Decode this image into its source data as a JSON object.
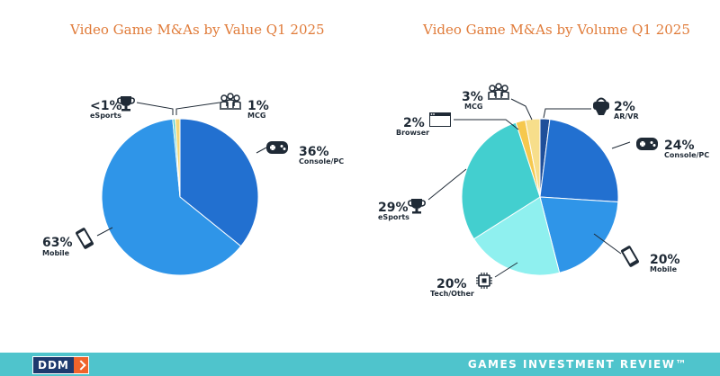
{
  "chart_data": [
    {
      "type": "pie",
      "title": "Video Game M&As by Value Q1 2025",
      "slices": [
        {
          "label": "Console/PC",
          "value": 36,
          "pct_label": "36%",
          "color": "#2270d0",
          "icon": "gamepad-icon"
        },
        {
          "label": "Mobile",
          "value": 63,
          "pct_label": "63%",
          "color": "#2f95e8",
          "icon": "phone-icon"
        },
        {
          "label": "eSports",
          "value": 0.5,
          "pct_label": "<1%",
          "color": "#4ecfd0",
          "icon": "trophy-icon"
        },
        {
          "label": "MCG",
          "value": 1,
          "pct_label": "1%",
          "color": "#f3d77a",
          "icon": "people-icon"
        }
      ]
    },
    {
      "type": "pie",
      "title": "Video Game M&As by Volume Q1 2025",
      "slices": [
        {
          "label": "AR/VR",
          "value": 2,
          "pct_label": "2%",
          "color": "#1f4f9a",
          "icon": "vr-headset-icon"
        },
        {
          "label": "Console/PC",
          "value": 24,
          "pct_label": "24%",
          "color": "#2270d0",
          "icon": "gamepad-icon"
        },
        {
          "label": "Mobile",
          "value": 20,
          "pct_label": "20%",
          "color": "#2f95e8",
          "icon": "phone-icon"
        },
        {
          "label": "Tech/Other",
          "value": 20,
          "pct_label": "20%",
          "color": "#8ff0ef",
          "icon": "chip-icon"
        },
        {
          "label": "eSports",
          "value": 29,
          "pct_label": "29%",
          "color": "#43cfcf",
          "icon": "trophy-icon"
        },
        {
          "label": "Browser",
          "value": 2,
          "pct_label": "2%",
          "color": "#f6c84e",
          "icon": "browser-icon"
        },
        {
          "label": "MCG",
          "value": 3,
          "pct_label": "3%",
          "color": "#f7de8b",
          "icon": "people-icon"
        }
      ]
    }
  ],
  "footer": {
    "logo_text": "DDM",
    "brand": "GAMES INVESTMENT REVIEW™",
    "colors": {
      "bar": "#4fc4cc",
      "logo_bg": "#1e3a6e",
      "logo_accent": "#f0642b"
    }
  }
}
